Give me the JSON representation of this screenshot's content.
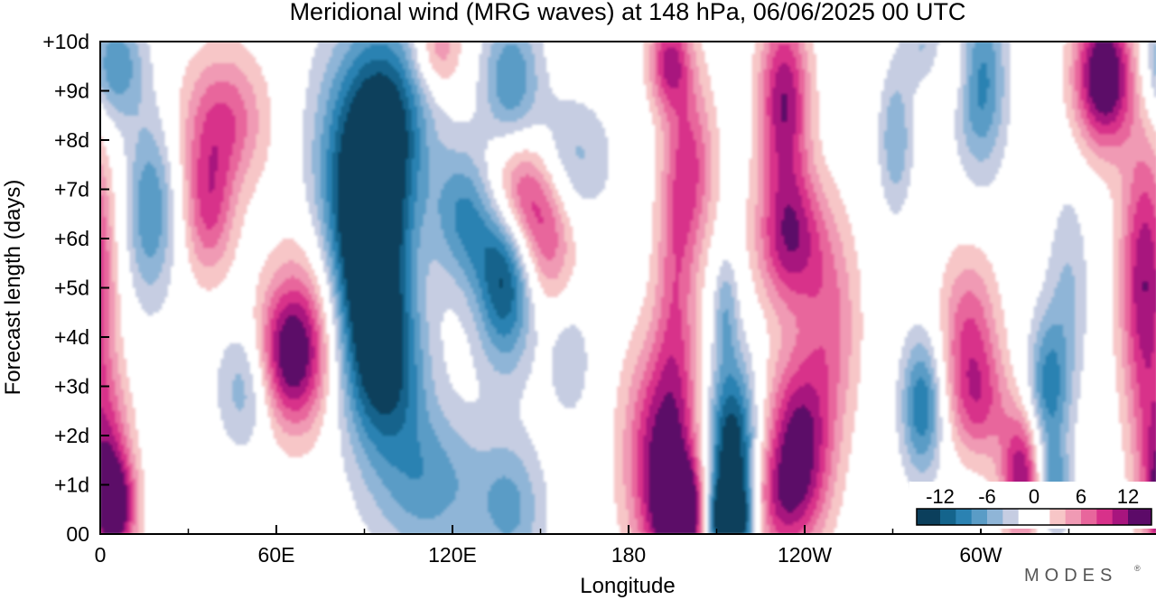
{
  "chart_data": {
    "type": "heatmap",
    "title": "Meridional wind (MRG waves) at  148 hPa,  06/06/2025  00 UTC",
    "xlabel": "Longitude",
    "ylabel": "Forecast length (days)",
    "x_ticks": [
      "0",
      "60E",
      "120E",
      "180",
      "120W",
      "60W"
    ],
    "x_tick_values": [
      0,
      60,
      120,
      180,
      240,
      300
    ],
    "xlim": [
      0,
      360
    ],
    "y_ticks": [
      "00",
      "+1d",
      "+2d",
      "+3d",
      "+4d",
      "+5d",
      "+6d",
      "+7d",
      "+8d",
      "+9d",
      "+10d"
    ],
    "y_tick_values": [
      0,
      1,
      2,
      3,
      4,
      5,
      6,
      7,
      8,
      9,
      10
    ],
    "ylim": [
      0,
      10
    ],
    "colorbar": {
      "tick_labels": [
        "-12",
        "-6",
        "0",
        "6",
        "12"
      ],
      "tick_values": [
        -12,
        -6,
        0,
        6,
        12
      ],
      "range": [
        -15,
        15
      ],
      "levels": [
        -15,
        -12,
        -10,
        -8,
        -6,
        -4,
        -2,
        2,
        4,
        6,
        8,
        10,
        12,
        15
      ],
      "colors": [
        "#0b3f5c",
        "#14648c",
        "#2b82b2",
        "#5a9cc6",
        "#8fb5d7",
        "#c6cde2",
        "#ffffff",
        "#f7c6c7",
        "#f09ab4",
        "#e8669c",
        "#d8318a",
        "#a8157e",
        "#5c0a68"
      ],
      "placement": "bottom-right, inside plot"
    },
    "field_features": [
      {
        "lon": 93,
        "day": 5.5,
        "value": -14,
        "rx": 9,
        "ry": 1.6
      },
      {
        "lon": 98,
        "day": 8.4,
        "value": -12,
        "rx": 10,
        "ry": 1.4
      },
      {
        "lon": 97,
        "day": 3.2,
        "value": -10,
        "rx": 10,
        "ry": 1.2
      },
      {
        "lon": 84,
        "day": 7.0,
        "value": -8,
        "rx": 10,
        "ry": 2.0
      },
      {
        "lon": 138,
        "day": 5.3,
        "value": -13,
        "rx": 7,
        "ry": 1.3
      },
      {
        "lon": 125,
        "day": 6.5,
        "value": -9,
        "rx": 8,
        "ry": 1.0
      },
      {
        "lon": 112,
        "day": 1.0,
        "value": -7,
        "rx": 14,
        "ry": 1.1
      },
      {
        "lon": 140,
        "day": 0.5,
        "value": -6,
        "rx": 8,
        "ry": 1.0
      },
      {
        "lon": 140,
        "day": 9.2,
        "value": -8,
        "rx": 7,
        "ry": 1.0
      },
      {
        "lon": 17,
        "day": 6.6,
        "value": -8,
        "rx": 6,
        "ry": 1.3
      },
      {
        "lon": 50,
        "day": 3.0,
        "value": -6,
        "rx": 7,
        "ry": 0.9
      },
      {
        "lon": 5,
        "day": 9.5,
        "value": -8,
        "rx": 7,
        "ry": 0.8
      },
      {
        "lon": 160,
        "day": 7.6,
        "value": -5,
        "rx": 10,
        "ry": 0.9
      },
      {
        "lon": 215,
        "day": 1.5,
        "value": -16,
        "rx": 6,
        "ry": 1.4
      },
      {
        "lon": 214,
        "day": 0.3,
        "value": -15,
        "rx": 5,
        "ry": 0.5
      },
      {
        "lon": 213,
        "day": 4.6,
        "value": -5,
        "rx": 3,
        "ry": 0.8
      },
      {
        "lon": 280,
        "day": 2.6,
        "value": -10,
        "rx": 5,
        "ry": 1.0
      },
      {
        "lon": 323,
        "day": 2.9,
        "value": -9,
        "rx": 5,
        "ry": 1.1
      },
      {
        "lon": 325,
        "day": 0.9,
        "value": -7,
        "rx": 4,
        "ry": 0.6
      },
      {
        "lon": 300,
        "day": 9.2,
        "value": -9,
        "rx": 6,
        "ry": 1.3
      },
      {
        "lon": 271,
        "day": 8.0,
        "value": -6,
        "rx": 4,
        "ry": 1.0
      },
      {
        "lon": 283,
        "day": 9.8,
        "value": -7,
        "rx": 6,
        "ry": 0.6
      },
      {
        "lon": 330,
        "day": 5.0,
        "value": -4,
        "rx": 5,
        "ry": 1.5
      },
      {
        "lon": 160,
        "day": 3.5,
        "value": -4,
        "rx": 5,
        "ry": 0.8
      },
      {
        "lon": 2,
        "day": 1.5,
        "value": 9,
        "rx": 6,
        "ry": 1.2
      },
      {
        "lon": 5,
        "day": 0.5,
        "value": 12,
        "rx": 5,
        "ry": 0.7
      },
      {
        "lon": 64,
        "day": 3.6,
        "value": 12,
        "rx": 8,
        "ry": 1.0
      },
      {
        "lon": 42,
        "day": 8.4,
        "value": 8,
        "rx": 10,
        "ry": 1.0
      },
      {
        "lon": 37,
        "day": 6.6,
        "value": 8,
        "rx": 6,
        "ry": 1.0
      },
      {
        "lon": 72,
        "day": 4.4,
        "value": 6,
        "rx": 9,
        "ry": 1.5
      },
      {
        "lon": 142,
        "day": 6.9,
        "value": 12,
        "rx": 9,
        "ry": 0.9
      },
      {
        "lon": 152,
        "day": 5.8,
        "value": 6,
        "rx": 7,
        "ry": 0.9
      },
      {
        "lon": 115,
        "day": 9.8,
        "value": 6,
        "rx": 6,
        "ry": 0.6
      },
      {
        "lon": 192,
        "day": 1.6,
        "value": 13,
        "rx": 9,
        "ry": 1.6
      },
      {
        "lon": 198,
        "day": 0.4,
        "value": 15,
        "rx": 6,
        "ry": 0.7
      },
      {
        "lon": 196,
        "day": 5.0,
        "value": 6,
        "rx": 5,
        "ry": 1.8
      },
      {
        "lon": 201,
        "day": 7.5,
        "value": 8,
        "rx": 6,
        "ry": 1.3
      },
      {
        "lon": 194,
        "day": 9.6,
        "value": 10,
        "rx": 5,
        "ry": 0.7
      },
      {
        "lon": 238,
        "day": 1.8,
        "value": 13,
        "rx": 8,
        "ry": 1.3
      },
      {
        "lon": 235,
        "day": 6.0,
        "value": 11,
        "rx": 8,
        "ry": 1.0
      },
      {
        "lon": 233,
        "day": 8.8,
        "value": 12,
        "rx": 6,
        "ry": 1.3
      },
      {
        "lon": 230,
        "day": 0.6,
        "value": 6,
        "rx": 8,
        "ry": 0.8
      },
      {
        "lon": 249,
        "day": 4.3,
        "value": 6,
        "rx": 7,
        "ry": 1.5
      },
      {
        "lon": 296,
        "day": 4.0,
        "value": 8,
        "rx": 7,
        "ry": 1.2
      },
      {
        "lon": 300,
        "day": 2.6,
        "value": 6,
        "rx": 7,
        "ry": 0.8
      },
      {
        "lon": 314,
        "day": 1.2,
        "value": 12,
        "rx": 5,
        "ry": 0.9
      },
      {
        "lon": 342,
        "day": 9.3,
        "value": 16,
        "rx": 7,
        "ry": 1.0
      },
      {
        "lon": 356,
        "day": 5.1,
        "value": 12,
        "rx": 6,
        "ry": 2.0
      },
      {
        "lon": 288,
        "day": 9.6,
        "value": 6,
        "rx": 6,
        "ry": 0.6
      }
    ]
  },
  "branding": {
    "text": "MODES",
    "mark": "®"
  }
}
